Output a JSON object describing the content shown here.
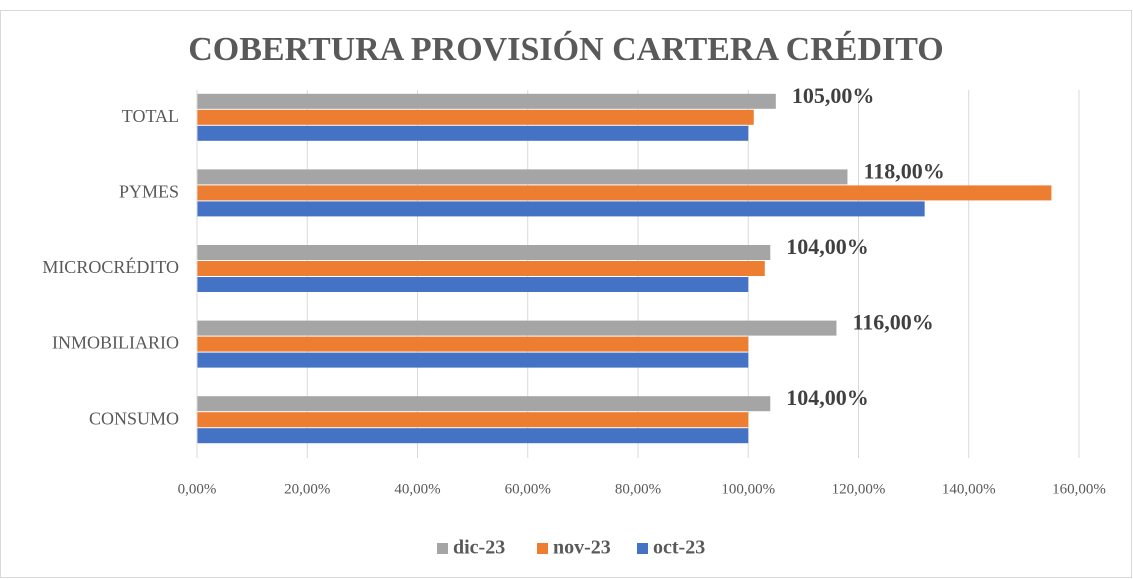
{
  "chart_data": {
    "type": "bar",
    "orientation": "horizontal",
    "title": "COBERTURA PROVISIÓN CARTERA CRÉDITO",
    "categories": [
      "TOTAL",
      "PYMES",
      "MICROCRÉDITO",
      "INMOBILIARIO",
      "CONSUMO"
    ],
    "series": [
      {
        "name": "dic-23",
        "color": "#a5a5a5",
        "values": [
          105,
          118,
          104,
          116,
          104
        ],
        "value_labels": [
          "105,00%",
          "118,00%",
          "104,00%",
          "116,00%",
          "104,00%"
        ]
      },
      {
        "name": "nov-23",
        "color": "#ed7d31",
        "values": [
          101,
          155,
          103,
          100,
          100
        ]
      },
      {
        "name": "oct-23",
        "color": "#4472c4",
        "values": [
          100,
          132,
          100,
          100,
          100
        ]
      }
    ],
    "xlim": [
      0,
      160
    ],
    "xticks": [
      {
        "value": 0,
        "label": "0,00%"
      },
      {
        "value": 20,
        "label": "20,00%"
      },
      {
        "value": 40,
        "label": "40,00%"
      },
      {
        "value": 60,
        "label": "60,00%"
      },
      {
        "value": 80,
        "label": "80,00%"
      },
      {
        "value": 100,
        "label": "100,00%"
      },
      {
        "value": 120,
        "label": "120,00%"
      },
      {
        "value": 140,
        "label": "140,00%"
      },
      {
        "value": 160,
        "label": "160,00%"
      }
    ],
    "grid": true,
    "legend": "bottom"
  }
}
